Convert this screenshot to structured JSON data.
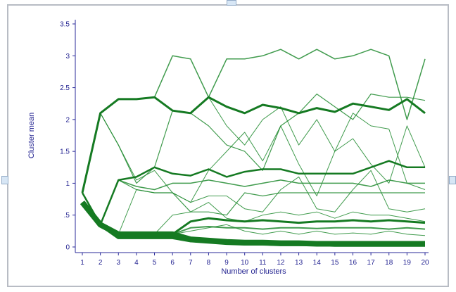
{
  "chart_data": {
    "type": "line",
    "title": "",
    "xlabel": "Number of clusters",
    "ylabel": "Cluster mean",
    "xlim": [
      1,
      20
    ],
    "ylim": [
      0,
      3.5
    ],
    "x_ticks": [
      "1",
      "2",
      "3",
      "4",
      "5",
      "6",
      "7",
      "8",
      "9",
      "10",
      "11",
      "12",
      "13",
      "14",
      "15",
      "16",
      "17",
      "18",
      "19",
      "20"
    ],
    "y_ticks": [
      "0",
      ".5",
      "1",
      "1.5",
      "2",
      "2.5",
      "3",
      "3.5"
    ],
    "grid": false,
    "legend": "none",
    "line_color": "#1f8a2e",
    "heavy_line_color": "#157a22",
    "axis_color": "#2a2a9a",
    "trajectories": [
      {
        "weight": 8,
        "values": [
          0.7,
          0.35,
          0.2,
          0.2,
          0.2,
          0.2,
          0.12,
          0.1,
          0.08,
          0.07,
          0.07,
          0.06,
          0.06,
          0.05,
          0.05,
          0.05,
          0.05,
          0.05,
          0.05,
          0.05
        ]
      },
      {
        "weight": 5,
        "values": [
          0.7,
          0.35,
          0.15,
          0.15,
          0.15,
          0.15,
          0.1,
          0.08,
          0.06,
          0.05,
          0.05,
          0.04,
          0.04,
          0.04,
          0.03,
          0.03,
          0.03,
          0.03,
          0.03,
          0.03
        ]
      },
      {
        "weight": 3,
        "values": [
          0.7,
          0.35,
          0.2,
          0.2,
          0.2,
          0.2,
          0.4,
          0.45,
          0.42,
          0.4,
          0.42,
          0.4,
          0.38,
          0.4,
          0.4,
          0.42,
          0.4,
          0.42,
          0.4,
          0.38
        ]
      },
      {
        "weight": 2,
        "values": [
          0.7,
          0.35,
          0.2,
          0.2,
          0.2,
          0.2,
          0.3,
          0.32,
          0.3,
          0.3,
          0.28,
          0.3,
          0.3,
          0.29,
          0.3,
          0.3,
          0.3,
          0.28,
          0.3,
          0.28
        ]
      },
      {
        "weight": 3,
        "values": [
          0.85,
          2.1,
          2.32,
          2.32,
          2.35,
          2.14,
          2.1,
          2.35,
          2.2,
          2.1,
          2.23,
          2.18,
          2.1,
          2.18,
          2.12,
          2.25,
          2.2,
          2.15,
          2.32,
          2.1
        ]
      },
      {
        "weight": 1.5,
        "values": [
          0.85,
          2.1,
          2.32,
          2.32,
          2.35,
          3.0,
          2.95,
          2.35,
          2.95,
          2.95,
          3.0,
          3.1,
          2.95,
          3.1,
          2.95,
          3.0,
          3.1,
          3.0,
          2.0,
          2.95
        ]
      },
      {
        "weight": 1.2,
        "values": [
          0.85,
          2.1,
          1.6,
          1.0,
          1.25,
          2.14,
          2.1,
          1.9,
          1.6,
          1.5,
          1.2,
          1.9,
          2.1,
          2.4,
          2.2,
          2.0,
          2.4,
          2.35,
          2.35,
          2.3
        ]
      },
      {
        "weight": 2.5,
        "values": [
          0.85,
          0.35,
          1.05,
          1.1,
          1.25,
          1.15,
          1.12,
          1.22,
          1.1,
          1.18,
          1.22,
          1.22,
          1.15,
          1.15,
          1.15,
          1.15,
          1.25,
          1.35,
          1.25,
          1.25
        ]
      },
      {
        "weight": 1.5,
        "values": [
          0.85,
          0.35,
          1.05,
          0.95,
          0.9,
          1.0,
          1.0,
          1.05,
          1.0,
          0.95,
          1.0,
          1.05,
          1.0,
          1.0,
          1.0,
          1.0,
          0.95,
          1.05,
          1.0,
          1.0
        ]
      },
      {
        "weight": 1.2,
        "values": [
          0.85,
          0.35,
          1.05,
          0.9,
          0.85,
          0.85,
          0.55,
          0.55,
          0.5,
          0.85,
          0.8,
          0.85,
          0.85,
          0.85,
          0.85,
          0.85,
          0.85,
          0.85,
          0.85,
          0.85
        ]
      },
      {
        "weight": 1,
        "values": [
          0.85,
          0.35,
          0.2,
          0.9,
          0.85,
          0.85,
          0.7,
          0.8,
          0.8,
          0.6,
          0.55,
          0.9,
          1.1,
          0.6,
          0.55,
          0.9,
          1.2,
          0.6,
          0.55,
          0.6
        ]
      },
      {
        "weight": 1,
        "values": [
          0.85,
          2.1,
          1.6,
          1.05,
          1.2,
          0.85,
          0.7,
          1.2,
          1.5,
          1.8,
          1.35,
          1.9,
          1.3,
          0.8,
          1.5,
          1.7,
          1.3,
          1.0,
          1.9,
          1.25
        ]
      },
      {
        "weight": 1,
        "values": [
          0.85,
          0.35,
          0.2,
          0.2,
          0.2,
          0.5,
          0.55,
          0.7,
          0.45,
          0.4,
          0.5,
          0.55,
          0.5,
          0.55,
          0.45,
          0.55,
          0.5,
          0.5,
          0.45,
          0.4
        ]
      },
      {
        "weight": 1,
        "values": [
          0.85,
          0.35,
          0.2,
          0.2,
          0.2,
          0.2,
          0.25,
          0.3,
          0.35,
          0.25,
          0.2,
          0.25,
          0.2,
          0.25,
          0.2,
          0.22,
          0.2,
          0.25,
          0.2,
          0.18
        ]
      },
      {
        "weight": 1,
        "values": [
          0.85,
          2.1,
          2.32,
          2.32,
          2.35,
          2.14,
          2.1,
          2.35,
          1.9,
          1.6,
          2.0,
          2.2,
          1.6,
          2.0,
          1.5,
          2.1,
          1.9,
          1.85,
          1.0,
          0.9
        ]
      }
    ]
  }
}
